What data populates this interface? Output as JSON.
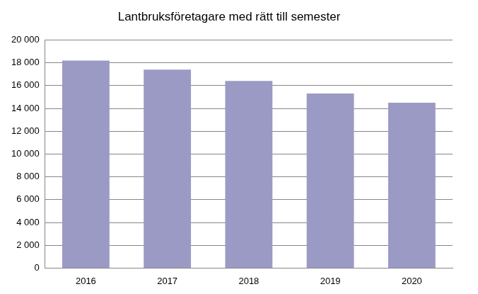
{
  "chart_data": {
    "type": "bar",
    "title": "Lantbruksföretagare med rätt till semester",
    "categories": [
      "2016",
      "2017",
      "2018",
      "2019",
      "2020"
    ],
    "values": [
      18200,
      17400,
      16400,
      15300,
      14500
    ],
    "color": "#9b9ac5",
    "ylim": [
      0,
      20000
    ],
    "yticks": [
      0,
      {
        "value": 2000,
        "label": "2 000"
      },
      {
        "value": 4000,
        "label": "4 000"
      },
      {
        "value": 6000,
        "label": "6 000"
      },
      {
        "value": 8000,
        "label": "8 000"
      },
      {
        "value": 10000,
        "label": "10 000"
      },
      {
        "value": 12000,
        "label": "12 000"
      },
      {
        "value": 14000,
        "label": "14 000"
      },
      {
        "value": 16000,
        "label": "16 000"
      },
      {
        "value": 18000,
        "label": "18 000"
      },
      {
        "value": 20000,
        "label": "20 000"
      }
    ],
    "grid": true
  }
}
